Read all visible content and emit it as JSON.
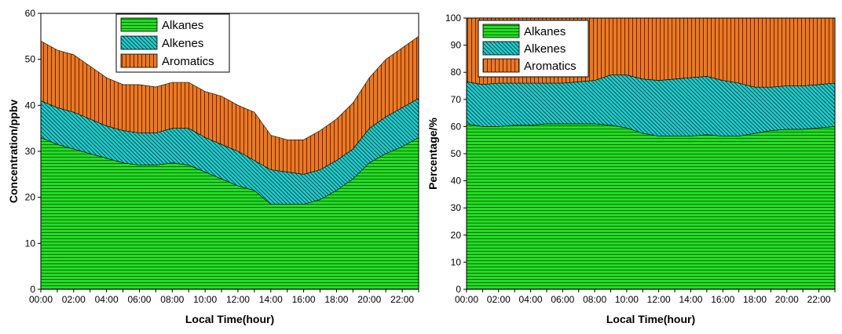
{
  "chart_data": [
    {
      "type": "area",
      "stacked": true,
      "xlabel": "Local Time(hour)",
      "ylabel": "Concentration/ppbv",
      "ylim": [
        0,
        60
      ],
      "yticks": [
        0,
        10,
        20,
        30,
        40,
        50,
        60
      ],
      "xticks": [
        "00:00",
        "02:00",
        "04:00",
        "06:00",
        "08:00",
        "10:00",
        "12:00",
        "14:00",
        "16:00",
        "18:00",
        "20:00",
        "22:00"
      ],
      "x": [
        0,
        1,
        2,
        3,
        4,
        5,
        6,
        7,
        8,
        9,
        10,
        11,
        12,
        13,
        14,
        15,
        16,
        17,
        18,
        19,
        20,
        21,
        22,
        23
      ],
      "series": [
        {
          "name": "Alkanes",
          "color": "#22dd22",
          "pattern": "horizontal",
          "values": [
            33,
            31.5,
            30.5,
            29.5,
            28.5,
            27.5,
            27,
            27,
            27.5,
            27,
            25.5,
            24,
            22.5,
            21.5,
            18.5,
            18.5,
            18.5,
            19.5,
            21.5,
            24,
            27.5,
            29.5,
            31,
            33
          ]
        },
        {
          "name": "Alkenes",
          "color": "#22cccc",
          "pattern": "diagonal",
          "values": [
            8,
            8,
            8,
            7.5,
            7,
            7,
            7,
            7,
            7.5,
            8,
            7.5,
            7.5,
            7.5,
            6.5,
            7.5,
            7,
            6.5,
            6.5,
            6.5,
            6.5,
            7.5,
            8,
            8.5,
            8.5
          ]
        },
        {
          "name": "Aromatics",
          "color": "#ee7722",
          "pattern": "vertical",
          "values": [
            13,
            12.5,
            12.5,
            11.5,
            10.5,
            10,
            10.5,
            10,
            10,
            10,
            10,
            10.5,
            10,
            10.5,
            7.5,
            7,
            7.5,
            8.5,
            9,
            10,
            11,
            12.5,
            13,
            13.5
          ]
        }
      ],
      "legend": {
        "position": "top-center",
        "entries": [
          "Alkanes",
          "Alkenes",
          "Aromatics"
        ]
      }
    },
    {
      "type": "area",
      "stacked": true,
      "xlabel": "Local Time(hour)",
      "ylabel": "Percentage/%",
      "ylim": [
        0,
        100
      ],
      "yticks": [
        0,
        10,
        20,
        30,
        40,
        50,
        60,
        70,
        80,
        90,
        100
      ],
      "xticks": [
        "00:00",
        "02:00",
        "04:00",
        "06:00",
        "08:00",
        "10:00",
        "12:00",
        "14:00",
        "16:00",
        "18:00",
        "20:00",
        "22:00"
      ],
      "x": [
        0,
        1,
        2,
        3,
        4,
        5,
        6,
        7,
        8,
        9,
        10,
        11,
        12,
        13,
        14,
        15,
        16,
        17,
        18,
        19,
        20,
        21,
        22,
        23
      ],
      "series": [
        {
          "name": "Alkanes",
          "color": "#22dd22",
          "pattern": "horizontal",
          "values": [
            61,
            60,
            60,
            60.5,
            60.5,
            61,
            61,
            61,
            61,
            60.5,
            59.5,
            57.5,
            56.5,
            56.5,
            56.5,
            57,
            56.5,
            56.5,
            57.5,
            58.5,
            59,
            59,
            59.5,
            60
          ]
        },
        {
          "name": "Alkenes",
          "color": "#22cccc",
          "pattern": "diagonal",
          "values": [
            15.5,
            15.5,
            16,
            15.5,
            15.5,
            15,
            15,
            15.5,
            16,
            18.5,
            19.5,
            20,
            20.5,
            21,
            21.5,
            21.5,
            20.5,
            19.5,
            17,
            16,
            16,
            16,
            16,
            16
          ]
        },
        {
          "name": "Aromatics",
          "color": "#ee7722",
          "pattern": "vertical",
          "values": [
            23.5,
            24.5,
            24,
            24,
            24,
            24,
            24,
            23.5,
            23,
            21,
            21,
            22.5,
            23,
            22.5,
            22,
            21.5,
            23,
            24,
            25.5,
            25.5,
            25,
            25,
            24.5,
            24
          ]
        }
      ],
      "legend": {
        "position": "top-left",
        "entries": [
          "Alkanes",
          "Alkenes",
          "Aromatics"
        ]
      }
    }
  ]
}
